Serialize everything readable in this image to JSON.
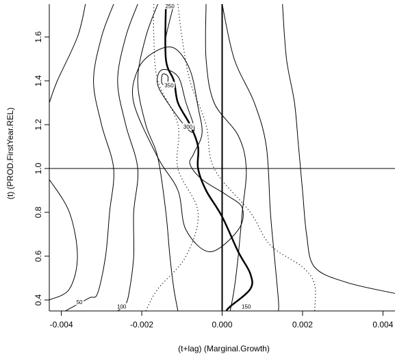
{
  "chart_data": {
    "type": "contour",
    "title": "",
    "xlabel": "(t+lag) (Marginal.Growth)",
    "ylabel": "(t) (PROD.FirstYear.REL)",
    "xlim": [
      -0.0043,
      0.0043
    ],
    "ylim": [
      0.35,
      1.75
    ],
    "x_ticks": [
      {
        "value": -0.004,
        "label": "-0.004"
      },
      {
        "value": -0.002,
        "label": "-0.002"
      },
      {
        "value": 0.0,
        "label": "0.000"
      },
      {
        "value": 0.002,
        "label": "0.002"
      },
      {
        "value": 0.004,
        "label": "0.004"
      }
    ],
    "y_ticks": [
      {
        "value": 0.4,
        "label": "0.4"
      },
      {
        "value": 0.6,
        "label": "0.6"
      },
      {
        "value": 0.8,
        "label": "0.8"
      },
      {
        "value": 1.0,
        "label": "1.0"
      },
      {
        "value": 1.2,
        "label": "1.2"
      },
      {
        "value": 1.4,
        "label": "1.4"
      },
      {
        "value": 1.6,
        "label": "1.6"
      }
    ],
    "reference_lines": {
      "vertical_x": 0.0,
      "horizontal_y": 1.0
    },
    "contours": [
      {
        "points": [
          [
            -0.0034,
            1.75
          ],
          [
            -0.0036,
            1.6
          ],
          [
            -0.0041,
            1.4
          ],
          [
            -0.0043,
            1.3
          ]
        ]
      },
      {
        "points": [
          [
            -0.0043,
            0.95
          ],
          [
            -0.0038,
            0.8
          ],
          [
            -0.0036,
            0.6
          ],
          [
            -0.0038,
            0.45
          ],
          [
            -0.0043,
            0.4
          ]
        ]
      },
      {
        "points": [
          [
            -0.0027,
            1.75
          ],
          [
            -0.003,
            1.6
          ],
          [
            -0.0032,
            1.4
          ],
          [
            -0.003,
            1.2
          ],
          [
            -0.0027,
            1.0
          ],
          [
            -0.0028,
            0.8
          ],
          [
            -0.0029,
            0.6
          ],
          [
            -0.0031,
            0.43
          ],
          [
            -0.0033,
            0.41
          ],
          [
            -0.0037,
            0.37
          ],
          [
            -0.0039,
            0.35
          ]
        ],
        "label": "50",
        "label_at": [
          -0.00355,
          0.39
        ]
      },
      {
        "points": [
          [
            -0.0021,
            1.75
          ],
          [
            -0.0024,
            1.6
          ],
          [
            -0.0026,
            1.4
          ],
          [
            -0.0024,
            1.2
          ],
          [
            -0.0021,
            1.0
          ],
          [
            -0.0022,
            0.8
          ],
          [
            -0.0022,
            0.6
          ],
          [
            -0.0023,
            0.45
          ],
          [
            -0.0024,
            0.38
          ],
          [
            -0.0026,
            0.35
          ]
        ],
        "label": "100",
        "label_at": [
          -0.0025,
          0.37
        ]
      },
      {
        "points": [
          [
            -0.0016,
            1.75
          ],
          [
            -0.0019,
            1.6
          ],
          [
            -0.0021,
            1.4
          ],
          [
            -0.0019,
            1.2
          ],
          [
            -0.0016,
            1.05
          ],
          [
            -0.0014,
            0.8
          ],
          [
            -0.0013,
            0.6
          ],
          [
            -0.0012,
            0.45
          ],
          [
            -0.0011,
            0.35
          ]
        ]
      },
      {
        "points": [
          [
            -0.0004,
            1.75
          ],
          [
            -0.0004,
            1.5
          ],
          [
            -0.0002,
            1.3
          ],
          [
            0.0004,
            1.15
          ],
          [
            0.0006,
            1.0
          ],
          [
            0.0005,
            0.8
          ],
          [
            0.0004,
            0.6
          ],
          [
            0.0003,
            0.45
          ],
          [
            0.0002,
            0.35
          ]
        ],
        "label": "150",
        "label_at": [
          0.0006,
          0.37
        ]
      },
      {
        "points": [
          [
            0.0,
            1.75
          ],
          [
            0.0003,
            1.5
          ],
          [
            0.0008,
            1.3
          ],
          [
            0.0011,
            1.1
          ],
          [
            0.0012,
            0.8
          ],
          [
            0.0013,
            0.6
          ],
          [
            0.0014,
            0.4
          ],
          [
            0.0014,
            0.35
          ]
        ]
      },
      {
        "points": [
          [
            0.0015,
            1.75
          ],
          [
            0.0016,
            1.5
          ],
          [
            0.0018,
            1.3
          ],
          [
            0.0019,
            1.1
          ],
          [
            0.002,
            0.9
          ],
          [
            0.0021,
            0.7
          ],
          [
            0.0023,
            0.55
          ],
          [
            0.0031,
            0.48
          ],
          [
            0.0043,
            0.43
          ]
        ]
      },
      {
        "points": [
          [
            -0.0012,
            1.75
          ],
          [
            -0.0014,
            1.6
          ],
          [
            -0.0014,
            1.55
          ]
        ],
        "label": "250",
        "label_at": [
          -0.0013,
          1.74
        ]
      },
      {
        "closed": true,
        "points": [
          [
            -0.0012,
            1.55
          ],
          [
            -0.0008,
            1.45
          ],
          [
            -0.0006,
            1.28
          ],
          [
            -0.0005,
            1.16
          ],
          [
            -0.0007,
            1.07
          ],
          [
            -0.0008,
            1.02
          ],
          [
            -0.0005,
            0.95
          ],
          [
            0.0001,
            0.88
          ],
          [
            0.0005,
            0.82
          ],
          [
            0.0004,
            0.72
          ],
          [
            -0.0003,
            0.62
          ],
          [
            -0.0009,
            0.72
          ],
          [
            -0.0011,
            0.9
          ],
          [
            -0.0016,
            1.05
          ],
          [
            -0.0022,
            1.3
          ],
          [
            -0.0021,
            1.45
          ],
          [
            -0.0017,
            1.53
          ]
        ]
      },
      {
        "closed": true,
        "points": [
          [
            -0.0015,
            1.45
          ],
          [
            -0.0011,
            1.42
          ],
          [
            -0.0009,
            1.3
          ],
          [
            -0.0007,
            1.19
          ],
          [
            -0.0008,
            1.17
          ],
          [
            -0.0012,
            1.26
          ],
          [
            -0.0016,
            1.38
          ]
        ],
        "label": "300",
        "label_at": [
          -0.00085,
          1.19
        ]
      },
      {
        "closed": true,
        "points": [
          [
            -0.00148,
            1.43
          ],
          [
            -0.00135,
            1.42
          ],
          [
            -0.00138,
            1.38
          ],
          [
            -0.0015,
            1.39
          ]
        ],
        "label": "350",
        "label_at": [
          -0.00132,
          1.38
        ]
      }
    ],
    "series": [
      {
        "style": "solid-thick",
        "points": [
          [
            -0.0014,
            1.75
          ],
          [
            -0.0014,
            1.5
          ],
          [
            -0.0012,
            1.4
          ],
          [
            -0.0011,
            1.3
          ],
          [
            -0.0008,
            1.2
          ],
          [
            -0.0006,
            1.1
          ],
          [
            -0.0006,
            1.0
          ],
          [
            -0.0004,
            0.9
          ],
          [
            0.0,
            0.78
          ],
          [
            0.0004,
            0.62
          ],
          [
            0.0007,
            0.52
          ],
          [
            0.0007,
            0.45
          ],
          [
            0.0002,
            0.37
          ],
          [
            0.0001,
            0.35
          ]
        ]
      },
      {
        "style": "dotted",
        "points": [
          [
            -0.0017,
            1.75
          ],
          [
            -0.0017,
            1.6
          ],
          [
            -0.0016,
            1.4
          ],
          [
            -0.0011,
            1.2
          ],
          [
            -0.0011,
            1.0
          ],
          [
            -0.0006,
            0.8
          ],
          [
            -0.0009,
            0.6
          ],
          [
            -0.0016,
            0.45
          ],
          [
            -0.0019,
            0.35
          ]
        ]
      },
      {
        "style": "dotted",
        "points": [
          [
            -0.0011,
            1.75
          ],
          [
            -0.001,
            1.6
          ],
          [
            -0.0008,
            1.4
          ],
          [
            -0.0004,
            1.2
          ],
          [
            -0.0002,
            1.0
          ],
          [
            0.0007,
            0.8
          ],
          [
            0.0012,
            0.65
          ],
          [
            0.002,
            0.55
          ],
          [
            0.0023,
            0.47
          ],
          [
            0.0023,
            0.35
          ]
        ]
      }
    ]
  }
}
